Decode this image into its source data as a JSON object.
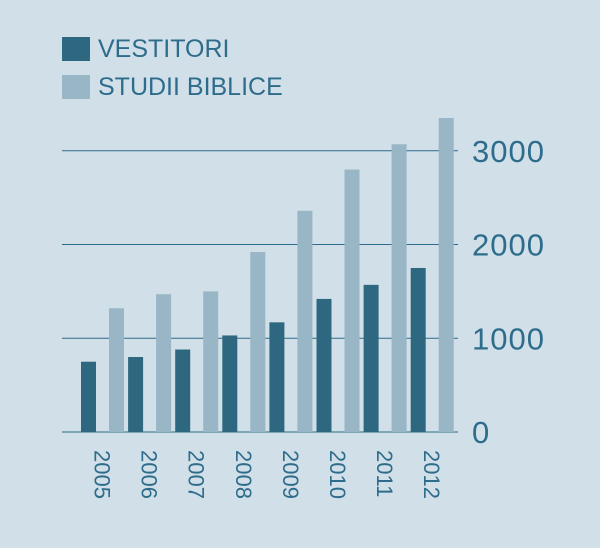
{
  "chart_data": {
    "type": "bar",
    "categories": [
      "2005",
      "2006",
      "2007",
      "2008",
      "2009",
      "2010",
      "2011",
      "2012"
    ],
    "series": [
      {
        "name": "VESTITORI",
        "values": [
          750,
          800,
          880,
          1030,
          1170,
          1420,
          1570,
          1750
        ],
        "color": "#2e6880"
      },
      {
        "name": "STUDII BIBLICE",
        "values": [
          1320,
          1470,
          1500,
          1920,
          2360,
          2800,
          3070,
          3350
        ],
        "color": "#98b6c6"
      }
    ],
    "yticks": [
      0,
      1000,
      2000,
      3000
    ],
    "ytick_labels": [
      "0",
      "1000",
      "2000",
      "3000"
    ],
    "ylim": [
      0,
      3350
    ],
    "yaxis_position": "right",
    "legend_position": "top-left",
    "grid": true,
    "text_color": "#2e6c8b",
    "background": "#d1dfe8"
  }
}
